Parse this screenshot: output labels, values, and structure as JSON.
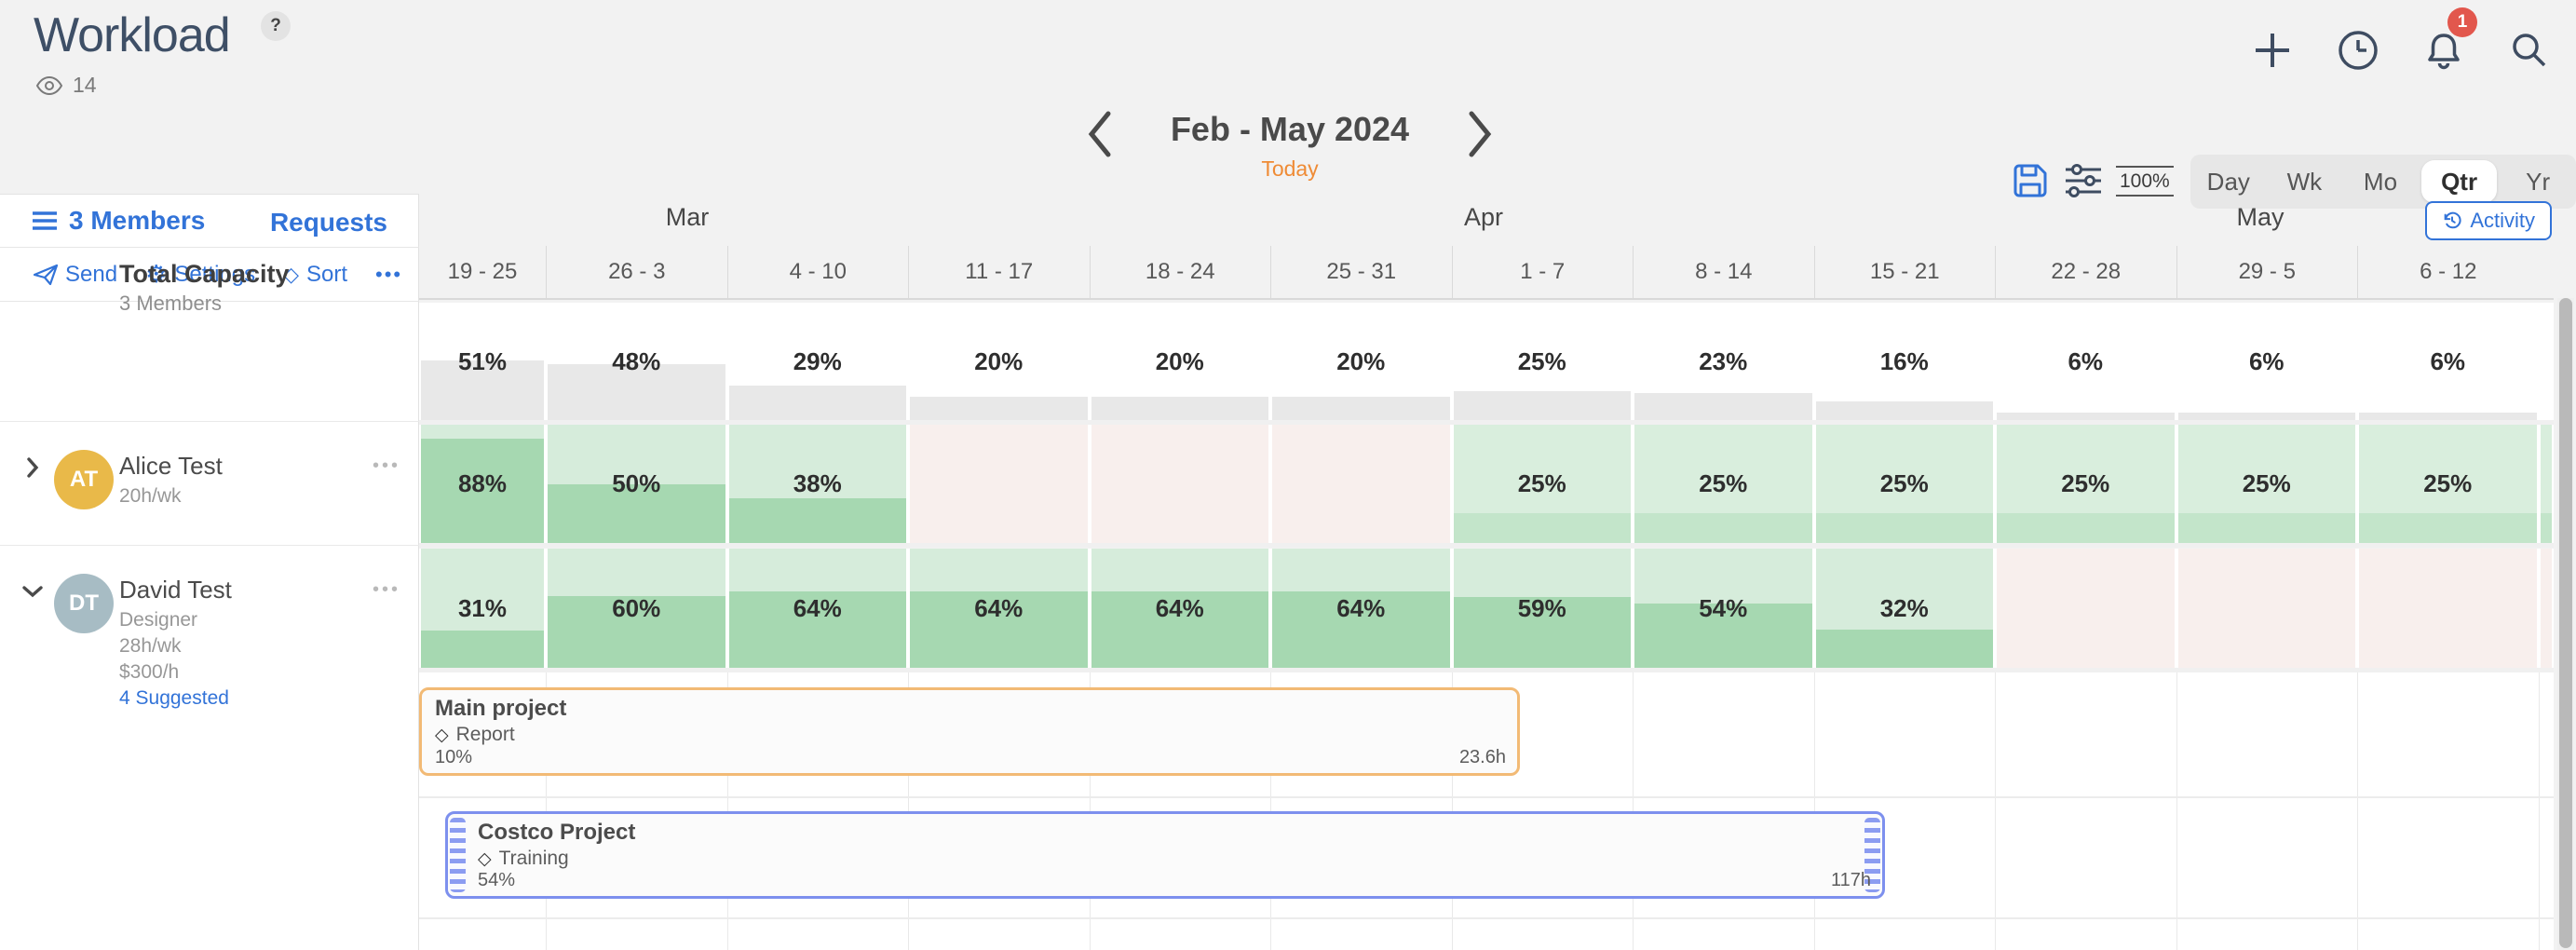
{
  "header": {
    "title": "Workload",
    "help_badge": "?",
    "watchers_count": "14",
    "notifications_badge": "1"
  },
  "date_nav": {
    "range_label": "Feb - May 2024",
    "today_label": "Today"
  },
  "toolbar": {
    "zoom_value": "100%",
    "scale_options": [
      "Day",
      "Wk",
      "Mo",
      "Qtr",
      "Yr"
    ],
    "active_scale": "Qtr",
    "activity_label": "Activity"
  },
  "sidebar": {
    "members_label": "3 Members",
    "requests_label": "Requests",
    "send_label": "Send",
    "settings_label": "Settings",
    "sort_label": "Sort",
    "more_label": "•••"
  },
  "timeline": {
    "months": [
      "Mar",
      "Apr",
      "May"
    ],
    "weeks": [
      "19 - 25",
      "26 - 3",
      "4 - 10",
      "11 - 17",
      "18 - 24",
      "25 - 31",
      "1 - 7",
      "8 - 14",
      "15 - 21",
      "22 - 28",
      "29 - 5",
      "6 - 12"
    ]
  },
  "capacity_row": {
    "title": "Total Capacity",
    "subtitle": "3 Members",
    "cells": [
      {
        "kind": "total",
        "pct": 51,
        "label": "51%"
      },
      {
        "kind": "total",
        "pct": 48,
        "label": "48%"
      },
      {
        "kind": "total",
        "pct": 29,
        "label": "29%"
      },
      {
        "kind": "total",
        "pct": 20,
        "label": "20%"
      },
      {
        "kind": "total",
        "pct": 20,
        "label": "20%"
      },
      {
        "kind": "total",
        "pct": 20,
        "label": "20%"
      },
      {
        "kind": "total",
        "pct": 25,
        "label": "25%"
      },
      {
        "kind": "total",
        "pct": 23,
        "label": "23%"
      },
      {
        "kind": "total",
        "pct": 16,
        "label": "16%"
      },
      {
        "kind": "total",
        "pct": 6,
        "label": "6%"
      },
      {
        "kind": "total",
        "pct": 6,
        "label": "6%"
      },
      {
        "kind": "total",
        "pct": 6,
        "label": "6%"
      },
      {
        "kind": "blank"
      }
    ]
  },
  "members": [
    {
      "initials": "AT",
      "name": "Alice Test",
      "details": [
        "20h/wk"
      ],
      "suggested_label": "",
      "avatar_color": "#e9b949",
      "expanded": false,
      "more_label": "•••",
      "cells": [
        {
          "kind": "work",
          "pct": 88,
          "label": "88%"
        },
        {
          "kind": "work",
          "pct": 50,
          "label": "50%"
        },
        {
          "kind": "work",
          "pct": 38,
          "label": "38%"
        },
        {
          "kind": "off"
        },
        {
          "kind": "off"
        },
        {
          "kind": "off"
        },
        {
          "kind": "work_light",
          "pct": 25,
          "label": "25%"
        },
        {
          "kind": "work_light",
          "pct": 25,
          "label": "25%"
        },
        {
          "kind": "work_light",
          "pct": 25,
          "label": "25%"
        },
        {
          "kind": "work_light",
          "pct": 25,
          "label": "25%"
        },
        {
          "kind": "work_light",
          "pct": 25,
          "label": "25%"
        },
        {
          "kind": "work_light",
          "pct": 25,
          "label": "25%"
        },
        {
          "kind": "work_light",
          "pct": 25,
          "label": ""
        }
      ]
    },
    {
      "initials": "DT",
      "name": "David Test",
      "details": [
        "Designer",
        "28h/wk",
        "$300/h"
      ],
      "suggested_label": "4 Suggested",
      "avatar_color": "#a7bcc4",
      "expanded": true,
      "more_label": "•••",
      "cells": [
        {
          "kind": "work",
          "pct": 31,
          "label": "31%"
        },
        {
          "kind": "work",
          "pct": 60,
          "label": "60%"
        },
        {
          "kind": "work",
          "pct": 64,
          "label": "64%"
        },
        {
          "kind": "work",
          "pct": 64,
          "label": "64%"
        },
        {
          "kind": "work",
          "pct": 64,
          "label": "64%"
        },
        {
          "kind": "work",
          "pct": 64,
          "label": "64%"
        },
        {
          "kind": "work",
          "pct": 59,
          "label": "59%"
        },
        {
          "kind": "work",
          "pct": 54,
          "label": "54%"
        },
        {
          "kind": "work",
          "pct": 32,
          "label": "32%"
        },
        {
          "kind": "off"
        },
        {
          "kind": "off"
        },
        {
          "kind": "off"
        },
        {
          "kind": "off"
        }
      ]
    }
  ],
  "bookings": [
    {
      "project": "Main project",
      "task": "Report",
      "pct_label": "10%",
      "hours_label": "23.6h"
    },
    {
      "project": "Costco Project",
      "task": "Training",
      "pct_label": "54%",
      "hours_label": "117h"
    }
  ],
  "colors": {
    "accent_blue": "#3273d8",
    "accent_orange": "#ef8b35",
    "badge_red": "#e2574d",
    "green_cell_bg": "#d6ecdb",
    "green_cell_fill": "#a6d8b1",
    "green_cell_fill_light": "#c3e5ca",
    "off_cell_pink": "#f8efed",
    "capacity_fill_gray": "#e8e8e8",
    "booking_border_orange": "#f2ba75",
    "booking_border_blue": "#7d90ee"
  }
}
